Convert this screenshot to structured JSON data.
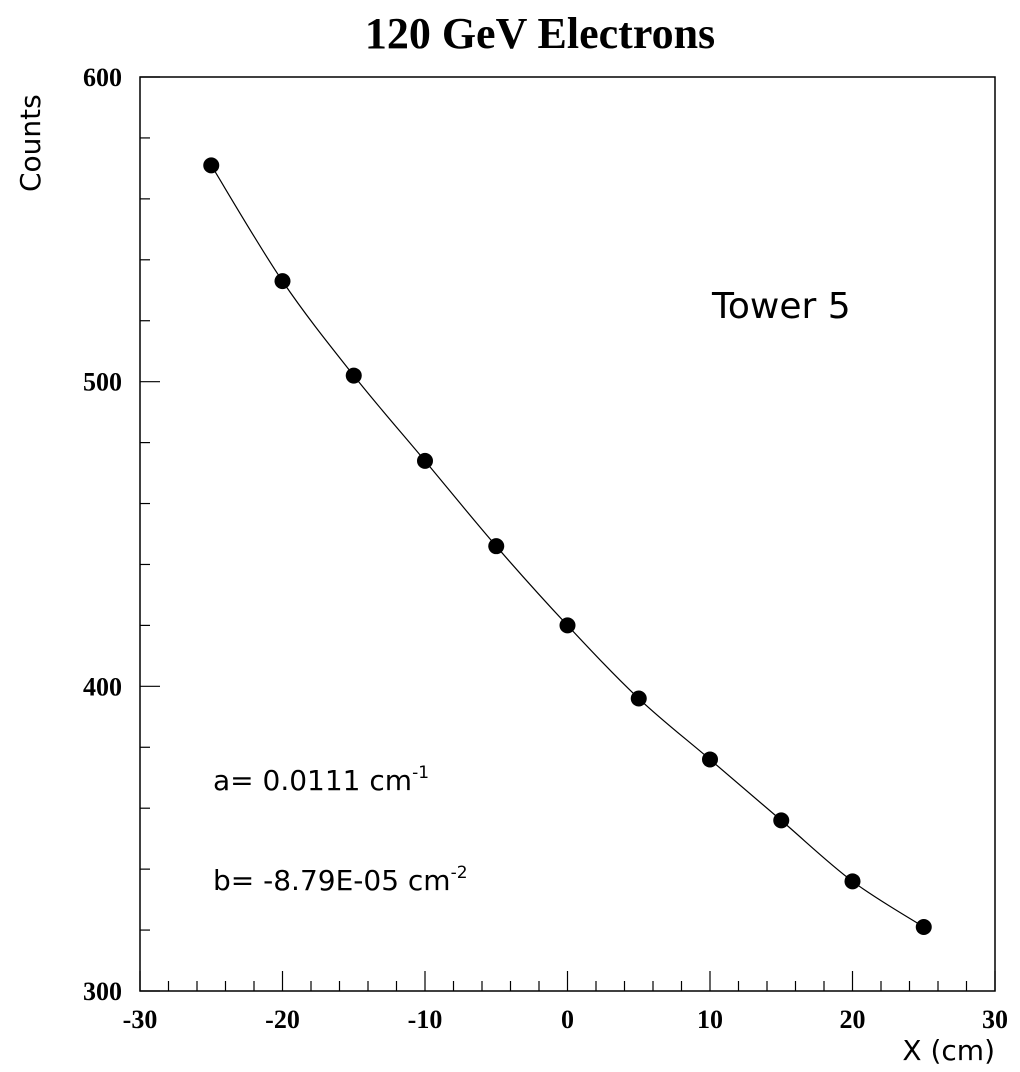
{
  "chart_data": {
    "type": "scatter",
    "title": "120 GeV Electrons",
    "xlabel": "X (cm)",
    "ylabel": "Counts",
    "xlim": [
      -30,
      30
    ],
    "ylim": [
      300,
      600
    ],
    "x_ticks": [
      "-30",
      "-20",
      "-10",
      "0",
      "10",
      "20",
      "30"
    ],
    "y_ticks": [
      "300",
      "400",
      "500",
      "600"
    ],
    "grid": false,
    "legend": "none",
    "series": [
      {
        "x": [
          -25,
          -20,
          -15,
          -10,
          -5,
          0,
          5,
          10,
          15,
          20,
          25
        ],
        "y": [
          571,
          533,
          502,
          474,
          446,
          420,
          396,
          376,
          356,
          336,
          321
        ]
      }
    ],
    "fit": {
      "x": [
        -25,
        -20,
        -15,
        -10,
        -5,
        0,
        5,
        10,
        15,
        20,
        25
      ],
      "y": [
        571,
        533,
        502,
        474,
        446,
        420,
        396,
        376,
        356,
        336,
        321
      ]
    },
    "annotations": {
      "tower": "Tower 5",
      "a_text": "a= 0.0111 cm",
      "a_exp": "-1",
      "b_text": "b=  -8.79E-05 cm",
      "b_exp": "-2"
    }
  }
}
